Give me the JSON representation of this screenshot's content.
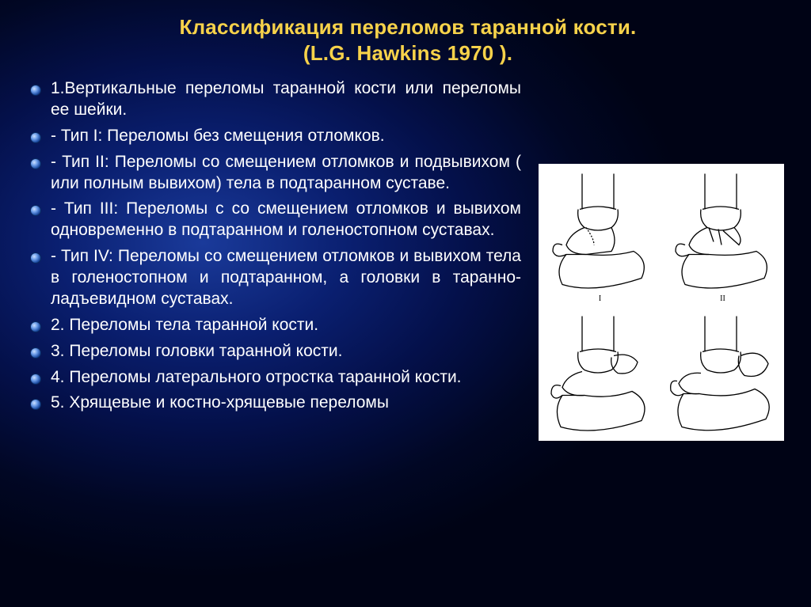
{
  "title_line1": "Классификация переломов таранной кости.",
  "title_line2": "(L.G. Hawkins 1970 ).",
  "bullets": [
    {
      "text": "1.Вертикальные переломы таранной кости или переломы ее шейки.",
      "justify": true
    },
    {
      "text": "- Тип I: Переломы без смещения отломков.",
      "justify": true
    },
    {
      "text": "- Тип II: Переломы со смещением отломков и подвывихом ( или полным вывихом) тела в подтаранном суставе.",
      "justify": true
    },
    {
      "text": "- Тип III: Переломы с со смещением отломков и вывихом одновременно в подтаранном и голеностопном суставах.",
      "justify": true
    },
    {
      "text": "- Тип IV: Переломы со смещением отломков и вывихом тела в голеностопном и подтаранном, а головки в таранно-ладъевидном суставах.",
      "justify": true
    },
    {
      "text": "2. Переломы тела таранной кости.",
      "justify": false
    },
    {
      "text": "3. Переломы головки таранной кости.",
      "justify": false
    },
    {
      "text": "4. Переломы латерального отростка таранной кости.",
      "justify": true
    },
    {
      "text": "5. Хрящевые и костно-хрящевые переломы",
      "justify": false
    }
  ],
  "diagram": {
    "labels": [
      "I",
      "II",
      "",
      ""
    ],
    "stroke": "#000000",
    "fill": "#ffffff"
  },
  "colors": {
    "title": "#f7d24a",
    "text": "#ffffff",
    "bg_inner": "#1a3a9a",
    "bg_outer": "#000315"
  },
  "fonts": {
    "title_size": 26,
    "body_size": 21
  }
}
